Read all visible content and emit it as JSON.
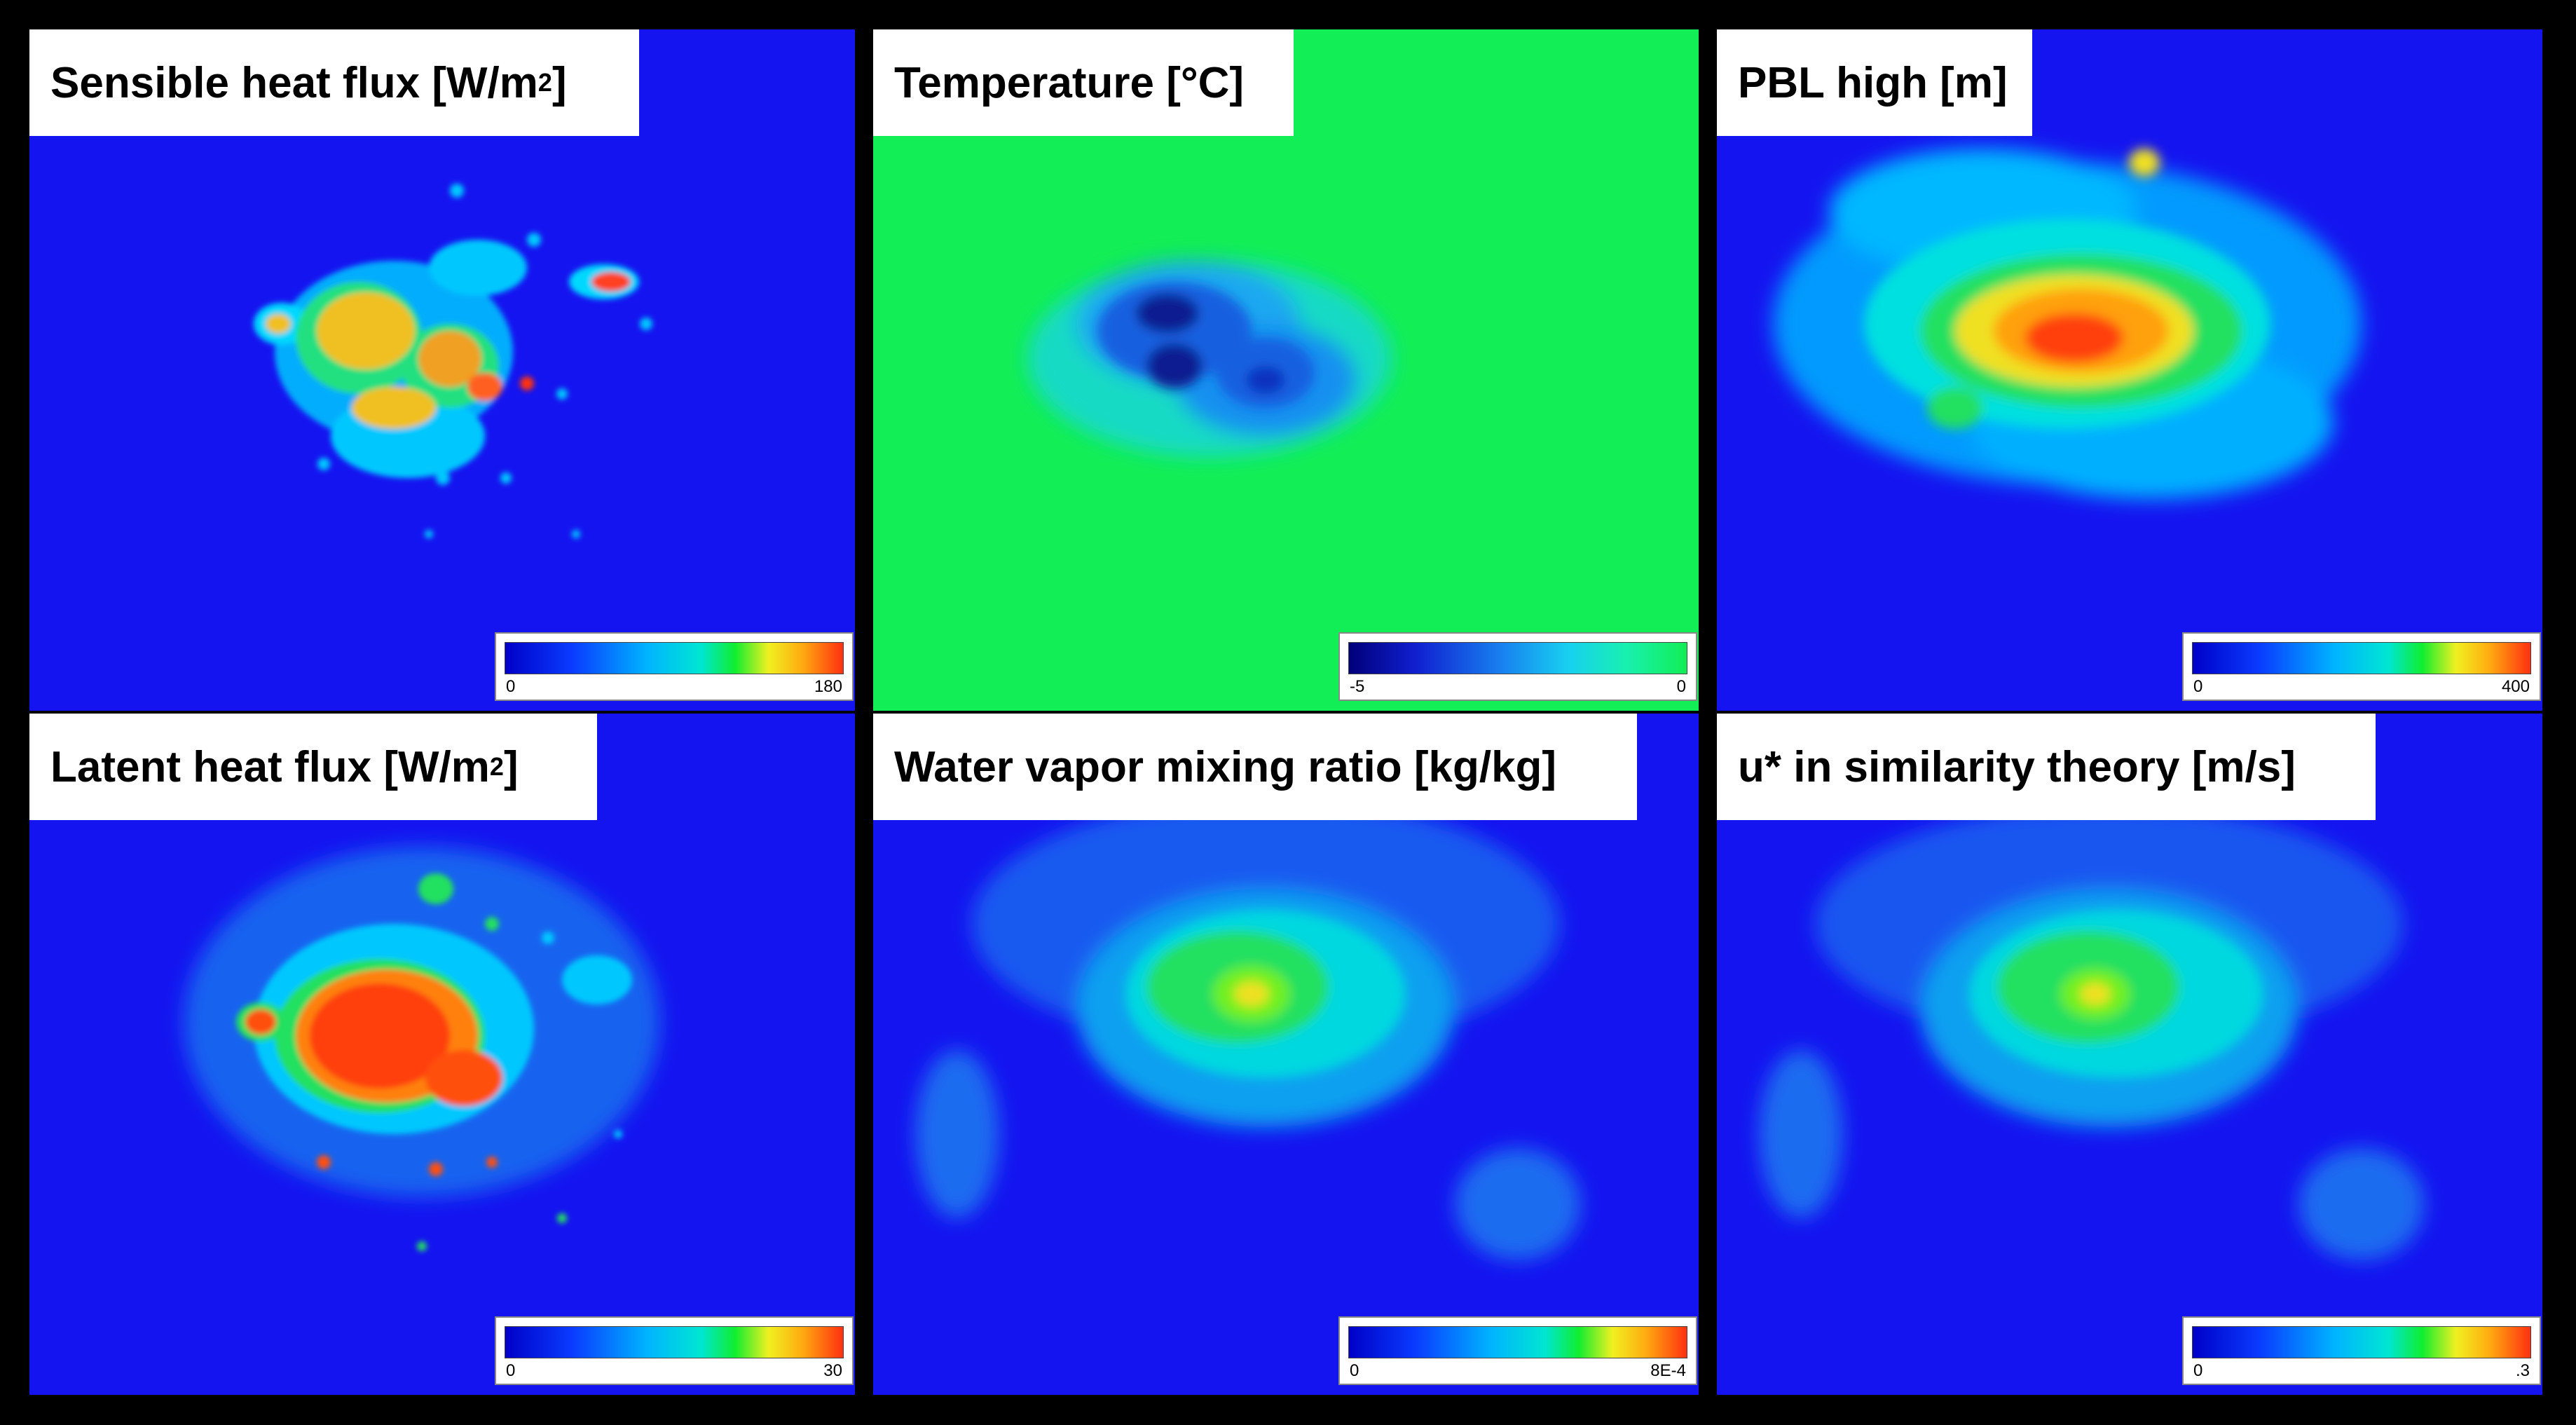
{
  "colors": {
    "background": "#000000",
    "field_low": "#1414f0",
    "temperature_field": "#12ee55"
  },
  "panels": [
    {
      "id": "sensible",
      "title": "Sensible heat flux [W/m",
      "title_sup": "2",
      "title_end": "]",
      "legend": {
        "min": "0",
        "max": "180",
        "palette": "jet"
      }
    },
    {
      "id": "temperature",
      "title": "Temperature [°C]",
      "title_sup": "",
      "title_end": "",
      "legend": {
        "min": "-5",
        "max": "0",
        "palette": "blue-green"
      }
    },
    {
      "id": "pbl",
      "title": "PBL high [m]",
      "title_sup": "",
      "title_end": "",
      "legend": {
        "min": "0",
        "max": "400",
        "palette": "jet"
      }
    },
    {
      "id": "latent",
      "title": "Latent heat flux [W/m",
      "title_sup": "2",
      "title_end": "]",
      "legend": {
        "min": "0",
        "max": "30",
        "palette": "jet"
      }
    },
    {
      "id": "vapor",
      "title": "Water vapor mixing ratio [kg/kg]",
      "title_sup": "",
      "title_end": "",
      "legend": {
        "min": "0",
        "max": "8E-4",
        "palette": "jet"
      }
    },
    {
      "id": "ustar",
      "title": "u* in similarity theory [m/s]",
      "title_sup": "",
      "title_end": "",
      "legend": {
        "min": "0",
        "max": ".3",
        "palette": "jet"
      }
    }
  ]
}
